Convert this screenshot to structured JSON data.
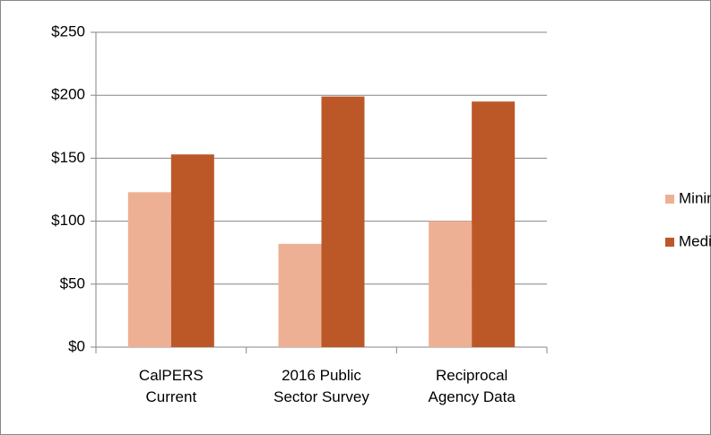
{
  "chart_data": {
    "type": "bar",
    "categories": [
      "CalPERS Current",
      "2016 Public Sector Survey",
      "Reciprocal Agency Data"
    ],
    "series": [
      {
        "name": "Minimum",
        "color": "#eeb094",
        "values": [
          123,
          82,
          100
        ]
      },
      {
        "name": "Median",
        "color": "#bc5828",
        "values": [
          153,
          199,
          195
        ]
      }
    ],
    "ylim": [
      0,
      250
    ],
    "yticks": [
      {
        "value": 0,
        "label": "$0"
      },
      {
        "value": 50,
        "label": "$50"
      },
      {
        "value": 100,
        "label": "$100"
      },
      {
        "value": 150,
        "label": "$150"
      },
      {
        "value": 200,
        "label": "$200"
      },
      {
        "value": 250,
        "label": "$250"
      }
    ],
    "grid": true,
    "legend": "right"
  }
}
